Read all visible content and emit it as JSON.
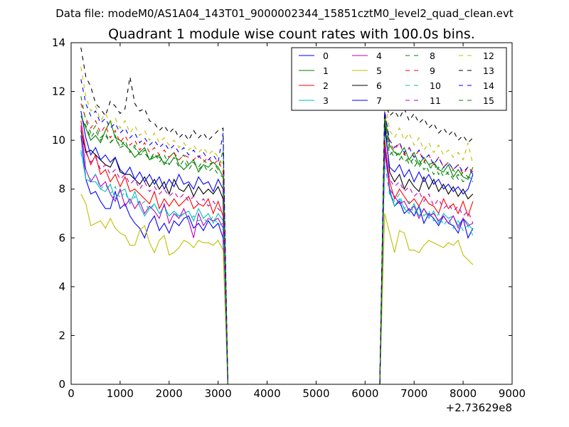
{
  "figure": {
    "suptitle": "Data file: modeM0/AS1A04_143T01_9000002344_15851cztM0_level2_quad_clean.evt"
  },
  "chart_data": {
    "type": "line",
    "title": "Quadrant 1 module wise count rates with 100.0s bins.",
    "xlabel": "",
    "ylabel": "",
    "x_offset_label": "+2.73629e8",
    "xlim": [
      0,
      9000
    ],
    "ylim": [
      0,
      14
    ],
    "xticks": [
      0,
      1000,
      2000,
      3000,
      4000,
      5000,
      6000,
      7000,
      8000,
      9000
    ],
    "yticks": [
      0,
      2,
      4,
      6,
      8,
      10,
      12,
      14
    ],
    "legend_position": "top-right",
    "legend_columns": 4,
    "segments": [
      {
        "x_start": 200,
        "x_end": 3100,
        "step": 100
      },
      {
        "x_start": 6400,
        "x_end": 8200,
        "step": 100
      }
    ],
    "gap": {
      "x_start": 3200,
      "x_end": 6300,
      "value": 0
    },
    "series": [
      {
        "name": "0",
        "color": "#0000ff",
        "dash": "solid",
        "seg1": [
          10.2,
          8.4,
          7.8,
          7.9,
          7.5,
          7.2,
          7.2,
          7.9,
          7.2,
          7.4,
          6.9,
          6.6,
          6.4,
          6.0,
          6.6,
          6.9,
          6.3,
          6.6,
          6.2,
          6.7,
          6.5,
          6.8,
          6.9,
          6.4,
          6.6,
          6.3,
          6.7,
          6.4,
          6.6,
          6.0
        ],
        "seg2": [
          9.9,
          7.9,
          7.3,
          7.5,
          7.0,
          7.2,
          6.9,
          7.3,
          6.6,
          7.0,
          6.8,
          6.5,
          6.9,
          6.6,
          6.5,
          6.2,
          6.8,
          6.0,
          6.4
        ]
      },
      {
        "name": "1",
        "color": "#008000",
        "dash": "solid",
        "seg1": [
          11.0,
          10.5,
          10.0,
          10.2,
          9.9,
          10.4,
          10.8,
          10.1,
          10.0,
          9.8,
          9.6,
          9.3,
          9.5,
          9.7,
          9.2,
          9.3,
          9.4,
          9.0,
          9.3,
          9.5,
          9.0,
          8.8,
          9.0,
          9.2,
          8.7,
          9.0,
          8.9,
          9.1,
          8.9,
          8.5
        ],
        "seg2": [
          11.0,
          9.8,
          9.5,
          9.4,
          9.7,
          9.2,
          9.5,
          9.0,
          9.3,
          9.0,
          9.1,
          8.8,
          8.7,
          9.0,
          8.5,
          8.8,
          8.5,
          8.4,
          8.9
        ]
      },
      {
        "name": "2",
        "color": "#ff0000",
        "dash": "solid",
        "seg1": [
          10.8,
          9.6,
          9.0,
          9.4,
          8.6,
          8.8,
          8.3,
          8.6,
          8.1,
          8.5,
          7.9,
          8.0,
          7.8,
          7.6,
          7.4,
          7.9,
          7.2,
          7.6,
          7.3,
          7.6,
          7.3,
          7.5,
          7.7,
          7.2,
          7.4,
          7.3,
          7.6,
          7.0,
          7.5,
          6.9
        ],
        "seg2": [
          10.0,
          8.3,
          7.6,
          8.0,
          7.7,
          7.4,
          7.6,
          7.3,
          7.7,
          7.4,
          7.3,
          7.0,
          7.6,
          7.2,
          7.4,
          7.0,
          7.5,
          6.9,
          7.5
        ]
      },
      {
        "name": "3",
        "color": "#00bfbf",
        "dash": "solid",
        "seg1": [
          9.6,
          8.4,
          8.3,
          8.3,
          8.0,
          7.9,
          8.2,
          7.6,
          7.9,
          8.0,
          7.4,
          7.9,
          7.3,
          6.9,
          7.2,
          7.4,
          7.0,
          7.3,
          6.9,
          7.1,
          6.9,
          7.0,
          7.1,
          6.7,
          7.2,
          6.8,
          7.0,
          6.6,
          7.0,
          6.7
        ],
        "seg2": [
          9.5,
          8.0,
          7.3,
          7.6,
          7.2,
          7.0,
          7.4,
          6.9,
          7.2,
          6.8,
          7.1,
          6.6,
          7.0,
          6.8,
          6.9,
          6.5,
          6.8,
          6.6,
          6.3
        ]
      },
      {
        "name": "4",
        "color": "#bf00bf",
        "dash": "solid",
        "seg1": [
          10.6,
          8.8,
          8.3,
          8.6,
          8.1,
          8.3,
          7.8,
          7.5,
          8.0,
          7.3,
          7.6,
          7.2,
          7.5,
          7.0,
          7.3,
          7.1,
          6.8,
          7.4,
          6.6,
          7.0,
          6.8,
          7.2,
          6.7,
          6.0,
          7.0,
          6.5,
          6.8,
          6.7,
          6.8,
          6.4
        ],
        "seg2": [
          9.6,
          8.0,
          7.7,
          7.4,
          7.5,
          7.1,
          7.3,
          6.8,
          7.2,
          6.9,
          7.0,
          6.7,
          6.9,
          6.6,
          6.9,
          6.4,
          6.8,
          6.5,
          6.6
        ]
      },
      {
        "name": "5",
        "color": "#bfbf00",
        "dash": "solid",
        "seg1": [
          7.8,
          7.4,
          6.5,
          6.6,
          6.7,
          6.4,
          6.8,
          6.4,
          6.2,
          6.1,
          5.7,
          5.7,
          6.3,
          6.5,
          5.8,
          5.4,
          5.9,
          6.1,
          5.3,
          5.4,
          5.6,
          5.9,
          5.8,
          5.6,
          5.9,
          5.8,
          5.8,
          5.7,
          5.9,
          5.5
        ],
        "seg2": [
          7.0,
          6.2,
          5.4,
          6.3,
          6.2,
          5.5,
          5.5,
          5.4,
          5.7,
          5.9,
          5.8,
          5.7,
          5.6,
          5.8,
          5.7,
          5.9,
          5.3,
          5.1,
          4.9
        ]
      },
      {
        "name": "6",
        "color": "#000000",
        "dash": "solid",
        "seg1": [
          10.4,
          9.5,
          9.6,
          9.4,
          9.2,
          9.0,
          8.9,
          9.3,
          8.7,
          8.6,
          8.6,
          8.4,
          8.2,
          8.5,
          8.1,
          8.4,
          8.0,
          8.3,
          7.8,
          8.4,
          8.0,
          7.9,
          8.2,
          7.7,
          8.1,
          7.8,
          8.0,
          7.8,
          8.1,
          7.6
        ],
        "seg2": [
          10.8,
          8.7,
          8.3,
          8.6,
          8.0,
          8.4,
          8.1,
          7.9,
          8.5,
          8.0,
          8.4,
          7.9,
          8.2,
          7.8,
          8.1,
          7.7,
          8.0,
          7.6,
          7.8
        ]
      },
      {
        "name": "7",
        "color": "#0000ff",
        "dash": "solid",
        "seg1": [
          11.2,
          10.1,
          9.4,
          9.7,
          9.2,
          9.4,
          9.1,
          9.3,
          8.8,
          8.6,
          8.9,
          8.4,
          8.7,
          8.3,
          8.6,
          8.2,
          8.5,
          8.0,
          8.4,
          8.1,
          8.6,
          8.2,
          8.3,
          8.0,
          8.5,
          8.2,
          8.3,
          7.9,
          8.4,
          8.0
        ],
        "seg2": [
          10.5,
          8.9,
          8.7,
          9.0,
          8.5,
          8.8,
          8.3,
          8.7,
          8.3,
          8.6,
          8.2,
          8.4,
          8.0,
          8.2,
          7.9,
          8.1,
          7.8,
          8.0,
          8.6
        ]
      },
      {
        "name": "8",
        "color": "#008000",
        "dash": "dashed",
        "seg1": [
          11.0,
          10.6,
          10.1,
          10.4,
          10.0,
          10.2,
          9.9,
          10.1,
          9.7,
          9.8,
          9.6,
          9.7,
          9.4,
          9.5,
          9.2,
          9.4,
          9.3,
          9.1,
          9.0,
          9.3,
          9.2,
          9.4,
          9.0,
          9.1,
          8.9,
          9.2,
          9.0,
          9.1,
          8.8,
          9.6
        ],
        "seg2": [
          10.8,
          9.4,
          9.6,
          9.2,
          9.5,
          9.0,
          9.3,
          8.9,
          9.2,
          8.7,
          9.1,
          8.6,
          8.9,
          8.6,
          8.8,
          8.4,
          8.7,
          8.5,
          8.3
        ]
      },
      {
        "name": "9",
        "color": "#ff0000",
        "dash": "dashed",
        "seg1": [
          11.5,
          10.9,
          10.5,
          10.8,
          10.3,
          10.6,
          10.1,
          10.4,
          9.9,
          10.2,
          9.8,
          10.0,
          9.6,
          9.9,
          9.5,
          9.7,
          9.4,
          9.6,
          9.3,
          9.5,
          9.2,
          9.4,
          9.3,
          9.2,
          9.4,
          9.1,
          9.3,
          9.0,
          9.2,
          8.7
        ],
        "seg2": [
          11.2,
          9.9,
          9.6,
          9.9,
          9.4,
          9.7,
          9.3,
          9.6,
          9.1,
          9.4,
          9.0,
          9.3,
          8.9,
          9.1,
          8.8,
          9.0,
          8.6,
          8.9,
          8.7
        ]
      },
      {
        "name": "10",
        "color": "#00bfbf",
        "dash": "dashed",
        "seg1": [
          9.5,
          8.6,
          8.4,
          8.6,
          8.0,
          8.2,
          7.8,
          8.1,
          7.6,
          7.9,
          7.4,
          7.7,
          7.3,
          7.5,
          7.1,
          7.4,
          7.0,
          7.2,
          6.9,
          7.1,
          6.8,
          7.0,
          6.7,
          6.9,
          6.7,
          6.8,
          6.6,
          6.9,
          6.5,
          6.6
        ],
        "seg2": [
          9.0,
          7.8,
          7.5,
          7.8,
          7.2,
          7.5,
          7.0,
          7.3,
          6.9,
          7.1,
          6.7,
          7.0,
          6.5,
          6.8,
          6.4,
          6.7,
          6.3,
          6.5,
          6.1
        ]
      },
      {
        "name": "11",
        "color": "#bf00bf",
        "dash": "dashed",
        "seg1": [
          10.5,
          9.5,
          9.1,
          9.3,
          8.8,
          9.0,
          8.6,
          8.8,
          8.4,
          8.6,
          8.2,
          8.4,
          8.0,
          8.3,
          7.9,
          8.1,
          7.8,
          8.0,
          7.7,
          7.9,
          7.6,
          7.8,
          7.5,
          7.7,
          7.4,
          7.6,
          7.3,
          7.5,
          7.2,
          7.0
        ],
        "seg2": [
          9.8,
          8.4,
          8.1,
          8.3,
          7.9,
          8.1,
          7.7,
          7.9,
          7.5,
          7.8,
          7.3,
          7.6,
          7.2,
          7.4,
          7.1,
          7.3,
          6.9,
          7.1,
          6.6
        ]
      },
      {
        "name": "12",
        "color": "#bfbf00",
        "dash": "dashed",
        "seg1": [
          13.0,
          11.8,
          11.2,
          11.4,
          10.8,
          11.1,
          10.7,
          10.9,
          10.5,
          10.8,
          10.3,
          10.6,
          10.2,
          10.4,
          10.0,
          10.3,
          9.9,
          10.1,
          9.8,
          10.0,
          9.7,
          9.9,
          9.6,
          9.8,
          9.5,
          9.7,
          9.4,
          9.6,
          9.3,
          9.0
        ],
        "seg2": [
          11.8,
          10.4,
          10.1,
          10.5,
          10.0,
          10.3,
          9.8,
          10.1,
          9.6,
          9.9,
          9.5,
          9.8,
          9.4,
          9.6,
          9.3,
          9.5,
          9.2,
          9.9,
          9.0
        ]
      },
      {
        "name": "13",
        "color": "#000000",
        "dash": "dashed",
        "seg1": [
          13.8,
          12.6,
          12.2,
          11.5,
          11.3,
          11.0,
          11.6,
          11.4,
          11.1,
          11.3,
          12.6,
          11.5,
          11.2,
          11.3,
          10.8,
          10.7,
          10.4,
          10.6,
          10.3,
          10.5,
          10.1,
          10.3,
          10.0,
          10.4,
          10.1,
          10.3,
          10.0,
          10.2,
          10.4,
          10.5
        ],
        "seg2": [
          11.6,
          11.0,
          11.2,
          10.9,
          11.3,
          10.8,
          11.1,
          10.7,
          10.9,
          10.5,
          10.7,
          10.3,
          10.5,
          10.2,
          10.4,
          10.0,
          10.2,
          9.9,
          10.1
        ]
      },
      {
        "name": "14",
        "color": "#0000ff",
        "dash": "dashed",
        "seg1": [
          12.5,
          11.5,
          11.0,
          11.2,
          10.7,
          10.9,
          10.5,
          10.7,
          10.3,
          10.5,
          10.1,
          10.3,
          9.9,
          10.1,
          9.8,
          10.0,
          9.7,
          9.9,
          9.6,
          9.8,
          9.5,
          9.7,
          9.4,
          9.6,
          9.3,
          9.5,
          9.2,
          9.4,
          9.1,
          10.3
        ],
        "seg2": [
          11.2,
          10.0,
          9.7,
          9.9,
          9.5,
          9.7,
          9.3,
          9.6,
          9.2,
          9.4,
          9.0,
          9.3,
          8.9,
          9.1,
          8.8,
          9.0,
          8.7,
          8.9,
          8.6
        ]
      },
      {
        "name": "15",
        "color": "#008000",
        "dash": "dashed",
        "seg1": [
          11.8,
          10.8,
          10.3,
          10.6,
          10.1,
          10.3,
          9.9,
          10.2,
          9.7,
          10.0,
          9.5,
          9.8,
          9.4,
          9.6,
          9.2,
          9.5,
          9.1,
          9.4,
          9.0,
          9.3,
          8.9,
          9.2,
          8.8,
          9.1,
          8.8,
          9.0,
          8.7,
          8.9,
          8.6,
          8.5
        ],
        "seg2": [
          10.8,
          9.6,
          9.3,
          9.5,
          9.1,
          9.3,
          8.9,
          9.2,
          8.8,
          9.0,
          8.6,
          8.9,
          8.5,
          8.7,
          8.4,
          8.6,
          8.3,
          8.5,
          8.4
        ]
      }
    ]
  }
}
